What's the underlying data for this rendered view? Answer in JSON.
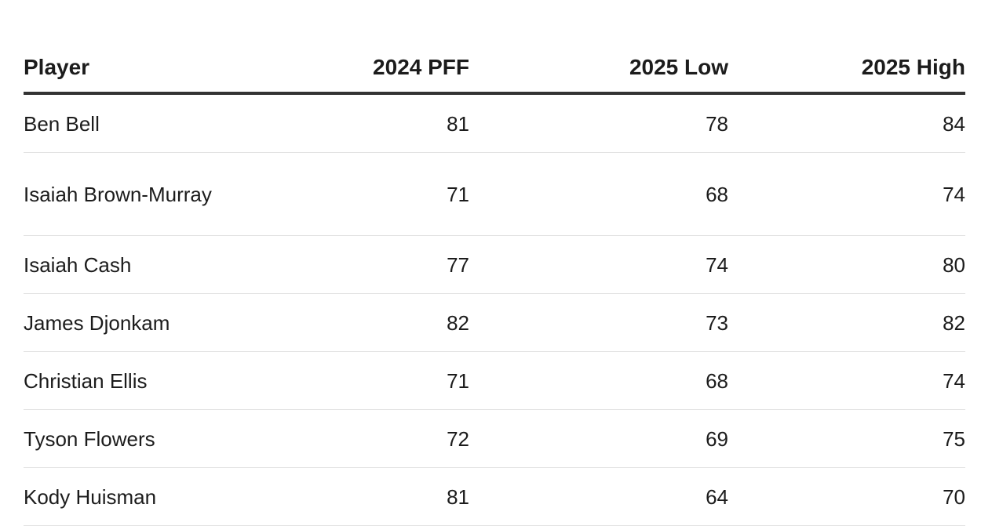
{
  "table": {
    "headers": {
      "player": "Player",
      "pff_2024": "2024 PFF",
      "low_2025": "2025 Low",
      "high_2025": "2025 High"
    },
    "rows": [
      {
        "player": "Ben Bell",
        "pff_2024": "81",
        "low_2025": "78",
        "high_2025": "84"
      },
      {
        "player": "Isaiah Brown-Murray",
        "pff_2024": "71",
        "low_2025": "68",
        "high_2025": "74"
      },
      {
        "player": "Isaiah Cash",
        "pff_2024": "77",
        "low_2025": "74",
        "high_2025": "80"
      },
      {
        "player": "James Djonkam",
        "pff_2024": "82",
        "low_2025": "73",
        "high_2025": "82"
      },
      {
        "player": "Christian Ellis",
        "pff_2024": "71",
        "low_2025": "68",
        "high_2025": "74"
      },
      {
        "player": "Tyson Flowers",
        "pff_2024": "72",
        "low_2025": "69",
        "high_2025": "75"
      },
      {
        "player": "Kody Huisman",
        "pff_2024": "81",
        "low_2025": "64",
        "high_2025": "70"
      }
    ]
  }
}
